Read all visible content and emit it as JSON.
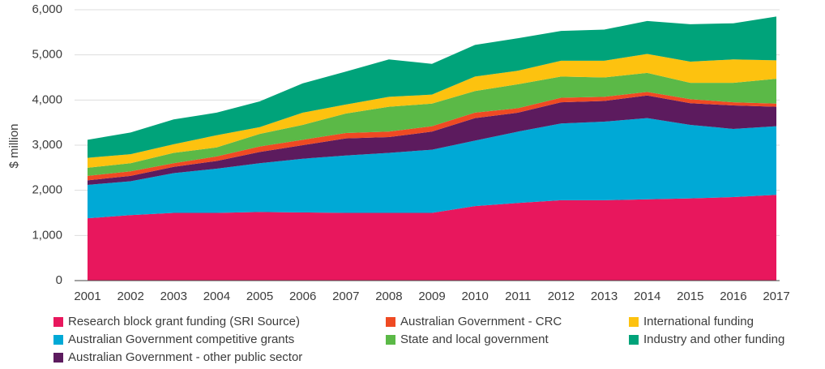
{
  "chart_data": {
    "type": "stacked-area",
    "y_label": "$ million",
    "categories": [
      "2001",
      "2002",
      "2003",
      "2004",
      "2005",
      "2006",
      "2007",
      "2008",
      "2009",
      "2010",
      "2011",
      "2012",
      "2013",
      "2014",
      "2015",
      "2016",
      "2017"
    ],
    "series": [
      {
        "name": "Research block grant funding (SRI Source)",
        "color": "#e8175d",
        "values": [
          1380,
          1450,
          1500,
          1500,
          1520,
          1510,
          1500,
          1500,
          1500,
          1650,
          1720,
          1780,
          1780,
          1800,
          1820,
          1850,
          1900
        ]
      },
      {
        "name": "Australian Government competitive grants",
        "color": "#00a9d6",
        "values": [
          740,
          750,
          880,
          980,
          1080,
          1190,
          1270,
          1330,
          1400,
          1450,
          1580,
          1700,
          1740,
          1800,
          1630,
          1510,
          1520
        ]
      },
      {
        "name": "Australian Government - other public sector",
        "color": "#5c1b5e",
        "values": [
          100,
          120,
          140,
          170,
          250,
          300,
          380,
          350,
          400,
          500,
          420,
          470,
          460,
          500,
          480,
          520,
          430
        ]
      },
      {
        "name": "Australian Government - CRC",
        "color": "#ef4a23",
        "values": [
          100,
          100,
          80,
          100,
          120,
          120,
          120,
          120,
          120,
          120,
          100,
          100,
          90,
          80,
          90,
          70,
          70
        ]
      },
      {
        "name": "State and local government",
        "color": "#5bb947",
        "values": [
          180,
          180,
          230,
          200,
          280,
          330,
          430,
          550,
          500,
          480,
          530,
          470,
          430,
          420,
          360,
          430,
          550
        ]
      },
      {
        "name": "International funding",
        "color": "#fdc20f",
        "values": [
          220,
          200,
          190,
          270,
          150,
          270,
          200,
          220,
          200,
          320,
          300,
          350,
          370,
          420,
          470,
          520,
          410
        ]
      },
      {
        "name": "Industry and other funding",
        "color": "#00a37a",
        "values": [
          400,
          480,
          550,
          500,
          570,
          650,
          730,
          830,
          680,
          700,
          720,
          660,
          690,
          730,
          830,
          800,
          970
        ]
      }
    ],
    "ylim": [
      0,
      6000
    ],
    "yticks": [
      0,
      {
        "value": 1000,
        "label": "1,000"
      },
      {
        "value": 2000,
        "label": "2,000"
      },
      {
        "value": 3000,
        "label": "3,000"
      },
      {
        "value": 4000,
        "label": "4,000"
      },
      {
        "value": 5000,
        "label": "5,000"
      },
      {
        "value": 6000,
        "label": "6,000"
      }
    ],
    "grid": true
  }
}
